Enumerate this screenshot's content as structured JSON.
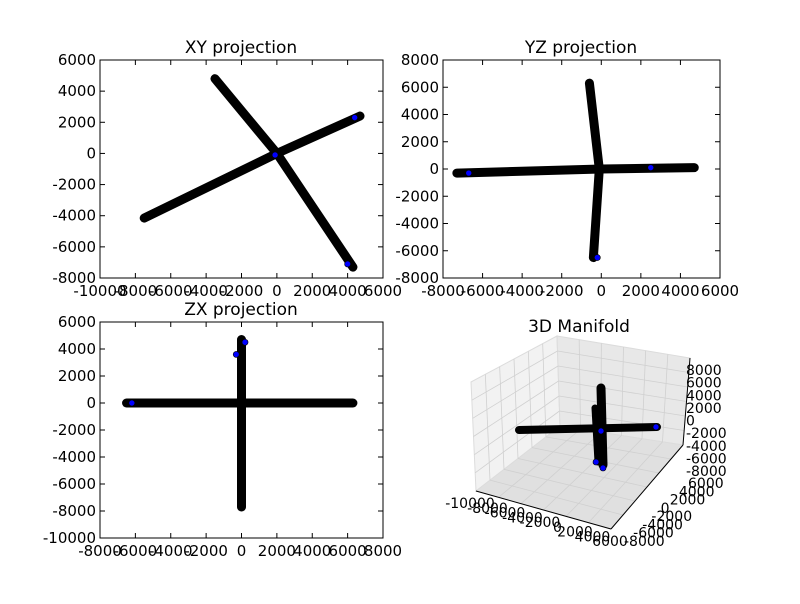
{
  "chart_data": [
    {
      "type": "line",
      "title": "XY projection",
      "xlim": [
        -10000,
        6000
      ],
      "ylim": [
        -8000,
        6000
      ],
      "xticks": [
        -10000,
        -8000,
        -6000,
        -4000,
        -2000,
        0,
        2000,
        4000,
        6000
      ],
      "yticks": [
        -8000,
        -6000,
        -4000,
        -2000,
        0,
        2000,
        4000,
        6000
      ],
      "series": [
        {
          "values": [
            [
              -7500,
              -4150
            ],
            [
              0,
              0
            ],
            [
              4700,
              2400
            ]
          ]
        },
        {
          "values": [
            [
              -3500,
              4800
            ],
            [
              0,
              0
            ],
            [
              4300,
              -7300
            ]
          ]
        }
      ],
      "markers": [
        [
          4400,
          2300
        ],
        [
          -100,
          -100
        ],
        [
          4000,
          -7100
        ]
      ],
      "color": "#000000",
      "marker_color": "#0000ff"
    },
    {
      "type": "line",
      "title": "YZ projection",
      "xlim": [
        -8000,
        6000
      ],
      "ylim": [
        -8000,
        8000
      ],
      "xticks": [
        -8000,
        -6000,
        -4000,
        -2000,
        0,
        2000,
        4000,
        6000
      ],
      "yticks": [
        -8000,
        -6000,
        -4000,
        -2000,
        0,
        2000,
        4000,
        6000,
        8000
      ],
      "series": [
        {
          "values": [
            [
              -7300,
              -300
            ],
            [
              0,
              0
            ],
            [
              4700,
              100
            ]
          ]
        },
        {
          "values": [
            [
              -600,
              6300
            ],
            [
              -100,
              0
            ],
            [
              -400,
              -6500
            ]
          ]
        }
      ],
      "markers": [
        [
          -6700,
          -300
        ],
        [
          2500,
          100
        ],
        [
          -200,
          -6500
        ]
      ],
      "color": "#000000",
      "marker_color": "#0000ff"
    },
    {
      "type": "line",
      "title": "ZX projection",
      "xlim": [
        -8000,
        8000
      ],
      "ylim": [
        -10000,
        6000
      ],
      "xticks": [
        -8000,
        -6000,
        -4000,
        -2000,
        0,
        2000,
        4000,
        6000,
        8000
      ],
      "yticks": [
        -10000,
        -8000,
        -6000,
        -4000,
        -2000,
        0,
        2000,
        4000,
        6000
      ],
      "series": [
        {
          "values": [
            [
              -6500,
              0
            ],
            [
              0,
              0
            ],
            [
              6300,
              0
            ]
          ]
        },
        {
          "values": [
            [
              0,
              4700
            ],
            [
              0,
              0
            ],
            [
              0,
              -7700
            ]
          ]
        }
      ],
      "markers": [
        [
          -6200,
          0
        ],
        [
          200,
          4500
        ],
        [
          -300,
          3600
        ]
      ],
      "color": "#000000",
      "marker_color": "#0000ff"
    },
    {
      "type": "scatter",
      "title": "3D Manifold",
      "xlim": [
        -10000,
        6000
      ],
      "ylim": [
        -8000,
        6000
      ],
      "zlim": [
        -8000,
        8000
      ],
      "xticks": [
        -10000,
        -8000,
        -6000,
        -4000,
        -2000,
        0,
        2000,
        4000,
        6000
      ],
      "yticks": [
        -8000,
        -6000,
        -4000,
        -2000,
        0,
        2000,
        4000,
        6000
      ],
      "zticks": [
        -8000,
        -6000,
        -4000,
        -2000,
        0,
        2000,
        4000,
        6000,
        8000
      ],
      "color": "#000000",
      "marker_color": "#0000ff"
    }
  ]
}
